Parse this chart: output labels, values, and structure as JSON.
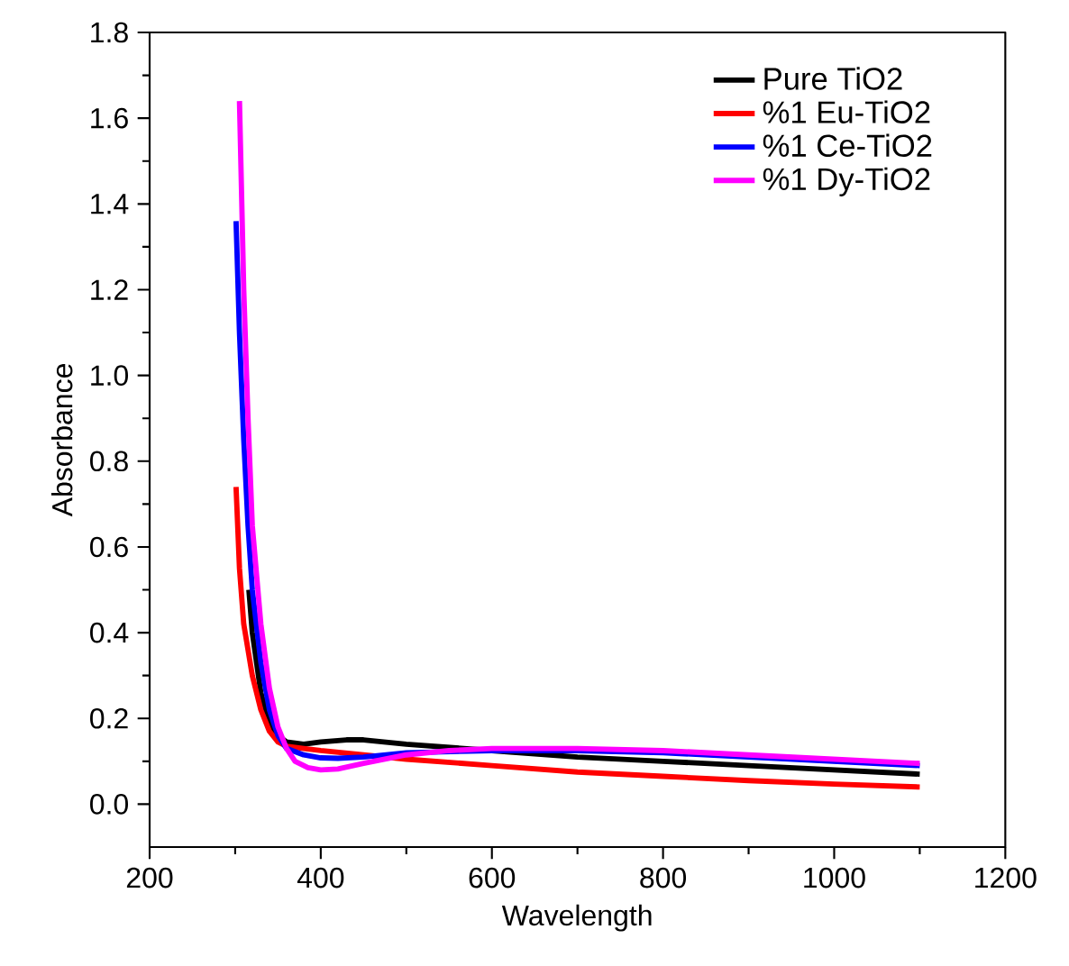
{
  "chart_data": {
    "type": "line",
    "xlabel": "Wavelength",
    "ylabel": "Absorbance",
    "xlim": [
      200,
      1200
    ],
    "ylim": [
      -0.1,
      1.8
    ],
    "xticks": [
      200,
      400,
      600,
      800,
      1000,
      1200
    ],
    "yticks": [
      {
        "value": 0,
        "label": "0.0"
      },
      0.2,
      0.4,
      0.6,
      0.8,
      {
        "value": 1,
        "label": "1.0"
      },
      1.2,
      1.4,
      1.6,
      1.8
    ],
    "legend": "top right",
    "grid": false,
    "marker": "none",
    "line_style": "solid",
    "series": [
      {
        "name": "Pure TiO2",
        "color": "#000000",
        "x": [
          316,
          320,
          330,
          340,
          350,
          360,
          380,
          400,
          430,
          450,
          500,
          600,
          700,
          800,
          900,
          1000,
          1100
        ],
        "values": [
          0.5,
          0.4,
          0.26,
          0.19,
          0.16,
          0.145,
          0.14,
          0.145,
          0.15,
          0.15,
          0.14,
          0.125,
          0.11,
          0.1,
          0.09,
          0.08,
          0.07
        ]
      },
      {
        "name": "%1 Eu-TiO2",
        "color": "#ff0000",
        "x": [
          301,
          305,
          310,
          320,
          330,
          340,
          350,
          360,
          380,
          400,
          450,
          500,
          600,
          700,
          800,
          900,
          1000,
          1100
        ],
        "values": [
          0.74,
          0.55,
          0.42,
          0.3,
          0.22,
          0.17,
          0.145,
          0.135,
          0.13,
          0.125,
          0.115,
          0.105,
          0.09,
          0.075,
          0.065,
          0.055,
          0.047,
          0.04
        ]
      },
      {
        "name": "%1 Ce-TiO2",
        "color": "#0000ff",
        "x": [
          301,
          305,
          310,
          315,
          320,
          330,
          340,
          350,
          360,
          380,
          400,
          420,
          450,
          500,
          600,
          700,
          800,
          900,
          1000,
          1100
        ],
        "values": [
          1.36,
          1.1,
          0.85,
          0.65,
          0.5,
          0.33,
          0.22,
          0.16,
          0.13,
          0.115,
          0.108,
          0.107,
          0.11,
          0.12,
          0.125,
          0.125,
          0.12,
          0.11,
          0.1,
          0.09
        ]
      },
      {
        "name": "%1 Dy-TiO2",
        "color": "#ff00ff",
        "x": [
          305,
          310,
          315,
          320,
          330,
          340,
          350,
          360,
          370,
          385,
          400,
          420,
          450,
          500,
          550,
          600,
          700,
          800,
          900,
          1000,
          1100
        ],
        "values": [
          1.64,
          1.2,
          0.9,
          0.65,
          0.42,
          0.27,
          0.18,
          0.13,
          0.1,
          0.085,
          0.08,
          0.082,
          0.095,
          0.115,
          0.125,
          0.13,
          0.13,
          0.125,
          0.115,
          0.105,
          0.095
        ]
      }
    ]
  }
}
